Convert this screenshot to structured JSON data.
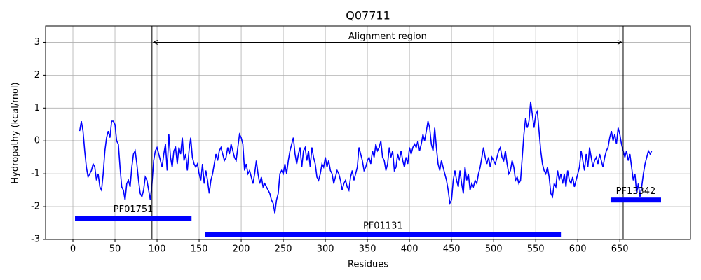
{
  "chart_data": {
    "type": "line",
    "title": "Q07711",
    "xlabel": "Residues",
    "ylabel": "Hydropathy (kcal/mol)",
    "color": "#0000ff",
    "grid": true,
    "xlim": [
      -32.5,
      734
    ],
    "ylim": [
      -3,
      3.5
    ],
    "xticks": [
      0,
      50,
      100,
      150,
      200,
      250,
      300,
      350,
      400,
      450,
      500,
      550,
      600,
      650
    ],
    "yticks": [
      -3,
      -2,
      -1,
      0,
      1,
      2,
      3
    ],
    "hline": 0,
    "region": {
      "label": "Alignment region",
      "start": 94,
      "end": 654,
      "y": 3
    },
    "domains": [
      {
        "name": "PF01751",
        "start": 2.5,
        "end": 141,
        "y": -2.35
      },
      {
        "name": "PF01131",
        "start": 157,
        "end": 580,
        "y": -2.85
      },
      {
        "name": "PF13342",
        "start": 639,
        "end": 699,
        "y": -1.8
      }
    ],
    "x": [
      8,
      10,
      12,
      14,
      16,
      18,
      20,
      22,
      24,
      26,
      28,
      30,
      32,
      34,
      36,
      38,
      40,
      42,
      44,
      46,
      48,
      50,
      52,
      54,
      56,
      58,
      60,
      62,
      64,
      66,
      68,
      70,
      72,
      74,
      76,
      78,
      80,
      82,
      84,
      86,
      88,
      90,
      92,
      94,
      96,
      98,
      100,
      102,
      104,
      106,
      108,
      110,
      112,
      114,
      116,
      118,
      120,
      122,
      124,
      126,
      128,
      130,
      132,
      134,
      136,
      138,
      140,
      142,
      144,
      146,
      148,
      150,
      152,
      154,
      156,
      158,
      160,
      162,
      164,
      166,
      168,
      170,
      172,
      174,
      176,
      178,
      180,
      182,
      184,
      186,
      188,
      190,
      192,
      194,
      196,
      198,
      200,
      202,
      204,
      206,
      208,
      210,
      212,
      214,
      216,
      218,
      220,
      222,
      224,
      226,
      228,
      230,
      232,
      234,
      236,
      238,
      240,
      242,
      244,
      246,
      248,
      250,
      252,
      254,
      256,
      258,
      260,
      262,
      264,
      266,
      268,
      270,
      272,
      274,
      276,
      278,
      280,
      282,
      284,
      286,
      288,
      290,
      292,
      294,
      296,
      298,
      300,
      302,
      304,
      306,
      308,
      310,
      312,
      314,
      316,
      318,
      320,
      322,
      324,
      326,
      328,
      330,
      332,
      334,
      336,
      338,
      340,
      342,
      344,
      346,
      348,
      350,
      352,
      354,
      356,
      358,
      360,
      362,
      364,
      366,
      368,
      370,
      372,
      374,
      376,
      378,
      380,
      382,
      384,
      386,
      388,
      390,
      392,
      394,
      396,
      398,
      400,
      402,
      404,
      406,
      408,
      410,
      412,
      414,
      416,
      418,
      420,
      422,
      424,
      426,
      428,
      430,
      432,
      434,
      436,
      438,
      440,
      442,
      444,
      446,
      448,
      450,
      452,
      454,
      456,
      458,
      460,
      462,
      464,
      466,
      468,
      470,
      472,
      474,
      476,
      478,
      480,
      482,
      484,
      486,
      488,
      490,
      492,
      494,
      496,
      498,
      500,
      502,
      504,
      506,
      508,
      510,
      512,
      514,
      516,
      518,
      520,
      522,
      524,
      526,
      528,
      530,
      532,
      534,
      536,
      538,
      540,
      542,
      544,
      546,
      548,
      550,
      552,
      554,
      556,
      558,
      560,
      562,
      564,
      566,
      568,
      570,
      572,
      574,
      576,
      578,
      580,
      582,
      584,
      586,
      588,
      590,
      592,
      594,
      596,
      598,
      600,
      602,
      604,
      606,
      608,
      610,
      612,
      614,
      616,
      618,
      620,
      622,
      624,
      626,
      628,
      630,
      632,
      634,
      636,
      638,
      640,
      642,
      644,
      646,
      648,
      650,
      652,
      654,
      656,
      658,
      660,
      662,
      664,
      666,
      668,
      670,
      672,
      674,
      676,
      678,
      680,
      682,
      684,
      686,
      688
    ],
    "values": [
      0.3,
      0.6,
      0.3,
      -0.3,
      -0.8,
      -1.1,
      -1.0,
      -0.9,
      -0.7,
      -0.8,
      -1.2,
      -1.0,
      -1.4,
      -1.5,
      -1.0,
      -0.3,
      0.1,
      0.3,
      0.1,
      0.6,
      0.6,
      0.5,
      0.0,
      -0.1,
      -0.8,
      -1.4,
      -1.5,
      -1.8,
      -1.3,
      -1.2,
      -1.4,
      -0.8,
      -0.4,
      -0.3,
      -0.7,
      -1.2,
      -1.6,
      -1.7,
      -1.5,
      -1.1,
      -1.2,
      -1.5,
      -1.8,
      -1.3,
      -0.6,
      -0.3,
      -0.2,
      -0.4,
      -0.6,
      -0.8,
      -0.4,
      -0.1,
      -0.9,
      0.2,
      -0.5,
      -0.8,
      -0.3,
      -0.2,
      -0.7,
      -0.2,
      -0.4,
      0.1,
      -0.6,
      -0.4,
      -0.9,
      -0.3,
      0.1,
      -0.5,
      -0.7,
      -0.8,
      -0.7,
      -1.0,
      -1.2,
      -0.7,
      -1.3,
      -0.9,
      -1.2,
      -1.6,
      -1.2,
      -1.0,
      -0.7,
      -0.4,
      -0.6,
      -0.3,
      -0.2,
      -0.4,
      -0.6,
      -0.5,
      -0.2,
      -0.4,
      -0.1,
      -0.3,
      -0.5,
      -0.6,
      -0.2,
      0.2,
      0.1,
      -0.1,
      -0.9,
      -0.7,
      -1.0,
      -0.9,
      -1.1,
      -1.3,
      -1.0,
      -0.6,
      -1.0,
      -1.3,
      -1.1,
      -1.4,
      -1.3,
      -1.4,
      -1.5,
      -1.6,
      -1.8,
      -1.9,
      -2.2,
      -1.8,
      -1.6,
      -1.0,
      -0.9,
      -1.0,
      -0.7,
      -1.0,
      -0.6,
      -0.3,
      -0.1,
      0.1,
      -0.4,
      -0.7,
      -0.4,
      -0.2,
      -0.8,
      -0.3,
      -0.2,
      -0.6,
      -0.3,
      -0.8,
      -0.2,
      -0.5,
      -0.7,
      -1.1,
      -1.2,
      -1.0,
      -0.7,
      -0.8,
      -0.5,
      -0.8,
      -0.6,
      -0.9,
      -1.0,
      -1.3,
      -1.1,
      -0.9,
      -1.0,
      -1.2,
      -1.5,
      -1.3,
      -1.2,
      -1.4,
      -1.5,
      -1.1,
      -0.9,
      -1.2,
      -1.0,
      -0.8,
      -0.2,
      -0.4,
      -0.6,
      -0.9,
      -0.8,
      -0.6,
      -0.5,
      -0.7,
      -0.3,
      -0.5,
      -0.1,
      -0.3,
      -0.2,
      0.0,
      -0.5,
      -0.6,
      -0.9,
      -0.7,
      -0.2,
      -0.5,
      -0.3,
      -0.9,
      -0.8,
      -0.4,
      -0.6,
      -0.3,
      -0.6,
      -0.8,
      -0.5,
      -0.7,
      -0.2,
      -0.4,
      -0.2,
      -0.1,
      -0.2,
      0.0,
      -0.3,
      -0.1,
      0.2,
      0.0,
      0.3,
      0.6,
      0.4,
      -0.1,
      -0.3,
      0.4,
      -0.2,
      -0.7,
      -0.9,
      -0.6,
      -0.8,
      -1.0,
      -1.2,
      -1.5,
      -1.9,
      -1.8,
      -1.2,
      -0.9,
      -1.2,
      -1.4,
      -0.9,
      -1.3,
      -1.6,
      -0.8,
      -1.2,
      -1.0,
      -1.5,
      -1.3,
      -1.4,
      -1.2,
      -1.3,
      -1.0,
      -0.8,
      -0.5,
      -0.2,
      -0.5,
      -0.7,
      -0.5,
      -0.8,
      -0.5,
      -0.6,
      -0.7,
      -0.5,
      -0.3,
      -0.2,
      -0.5,
      -0.6,
      -0.3,
      -0.7,
      -1.0,
      -0.9,
      -0.6,
      -0.8,
      -1.2,
      -1.1,
      -1.3,
      -1.2,
      -0.5,
      0.2,
      0.7,
      0.4,
      0.6,
      1.2,
      0.8,
      0.4,
      0.8,
      0.9,
      0.3,
      -0.3,
      -0.7,
      -0.9,
      -1.0,
      -0.8,
      -1.1,
      -1.6,
      -1.7,
      -1.3,
      -1.4,
      -0.9,
      -1.2,
      -1.0,
      -1.3,
      -1.0,
      -1.4,
      -0.9,
      -1.2,
      -1.3,
      -1.1,
      -1.4,
      -1.2,
      -1.0,
      -0.8,
      -0.3,
      -0.6,
      -0.9,
      -0.4,
      -0.8,
      -0.2,
      -0.5,
      -0.8,
      -0.6,
      -0.5,
      -0.7,
      -0.4,
      -0.6,
      -0.8,
      -0.5,
      -0.3,
      -0.2,
      0.1,
      0.3,
      0.0,
      0.2,
      -0.1,
      0.4,
      0.2,
      -0.1,
      -0.3,
      -0.5,
      -0.3,
      -0.6,
      -0.4,
      -0.8,
      -1.2,
      -1.0,
      -1.6,
      -1.3,
      -1.7,
      -1.4,
      -1.0,
      -0.7,
      -0.5,
      -0.3,
      -0.4,
      -0.3
    ]
  }
}
